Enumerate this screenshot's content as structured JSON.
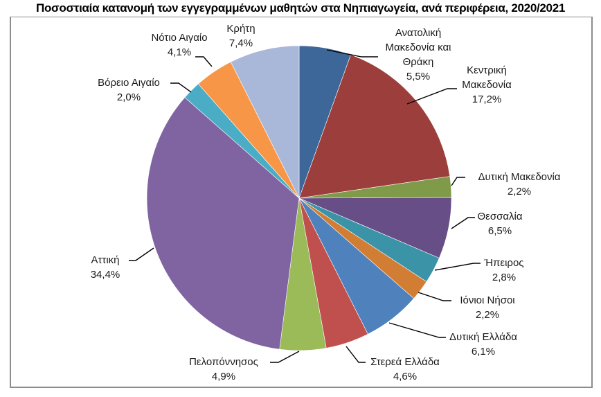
{
  "chart_data": {
    "type": "pie",
    "title": "Ποσοστιαία κατανομή των εγγεγραμμένων μαθητών στα Νηπιαγωγεία, ανά περιφέρεια, 2020/2021",
    "xlabel": "",
    "ylabel": "",
    "legend": "none (data labels with leader lines)",
    "categories": [
      "Ανατολική Μακεδονία και Θράκη",
      "Κεντρική Μακεδονία",
      "Δυτική Μακεδονία",
      "Θεσσαλία",
      "Ήπειρος",
      "Ιόνιοι Νήσοι",
      "Δυτική Ελλάδα",
      "Στερεά Ελλάδα",
      "Πελοπόννησος",
      "Αττική",
      "Βόρειο Αιγαίο",
      "Νότιο Αιγαίο",
      "Κρήτη"
    ],
    "values": [
      5.5,
      17.2,
      2.2,
      6.5,
      2.8,
      2.2,
      6.1,
      4.6,
      4.9,
      34.4,
      2.0,
      4.1,
      7.4
    ],
    "value_labels": [
      "5,5%",
      "17,2%",
      "2,2%",
      "6,5%",
      "2,8%",
      "2,2%",
      "6,1%",
      "4,6%",
      "4,9%",
      "34,4%",
      "2,0%",
      "4,1%",
      "7,4%"
    ],
    "colors": [
      "#3d6699",
      "#9c3f3c",
      "#7f9a48",
      "#674e86",
      "#3b93a8",
      "#d17e34",
      "#4f81bd",
      "#c0504d",
      "#9bbb59",
      "#8064a2",
      "#4bacc6",
      "#f79646",
      "#a9b8d8"
    ],
    "unit": "%"
  },
  "labels": {
    "amth": {
      "l1": "Ανατολική",
      "l2": "Μακεδονία και",
      "l3": "Θράκη",
      "v": "5,5%"
    },
    "km": {
      "l1": "Κεντρική",
      "l2": "Μακεδονία",
      "v": "17,2%"
    },
    "dm": {
      "l1": "Δυτική Μακεδονία",
      "v": "2,2%"
    },
    "th": {
      "l1": "Θεσσαλία",
      "v": "6,5%"
    },
    "ip": {
      "l1": "Ήπειρος",
      "v": "2,8%"
    },
    "in": {
      "l1": "Ιόνιοι Νήσοι",
      "v": "2,2%"
    },
    "de": {
      "l1": "Δυτική Ελλάδα",
      "v": "6,1%"
    },
    "se": {
      "l1": "Στερεά Ελλάδα",
      "v": "4,6%"
    },
    "pel": {
      "l1": "Πελοπόννησος",
      "v": "4,9%"
    },
    "att": {
      "l1": "Αττική",
      "v": "34,4%"
    },
    "ba": {
      "l1": "Βόρειο Αιγαίο",
      "v": "2,0%"
    },
    "na": {
      "l1": "Νότιο Αιγαίο",
      "v": "4,1%"
    },
    "kr": {
      "l1": "Κρήτη",
      "v": "7,4%"
    }
  }
}
